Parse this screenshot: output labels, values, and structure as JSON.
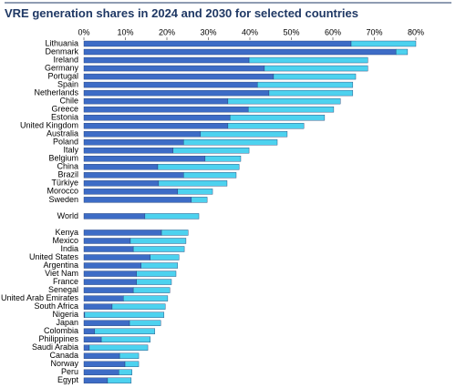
{
  "chart_data": {
    "type": "stacked-barh",
    "title": "VRE generation shares in 2024 and 2030 for selected countries",
    "categories": [
      "Lithuania",
      "Denmark",
      "Ireland",
      "Germany",
      "Portugal",
      "Spain",
      "Netherlands",
      "Chile",
      "Greece",
      "Estonia",
      "United Kingdom",
      "Australia",
      "Poland",
      "Italy",
      "Belgium",
      "China",
      "Brazil",
      "Türkiye",
      "Morocco",
      "Sweden",
      null,
      "World",
      null,
      "Kenya",
      "Mexico",
      "India",
      "United States",
      "Argentina",
      "Viet Nam",
      "France",
      "Senegal",
      "United Arab Emirates",
      "South Africa",
      "Nigeria",
      "Japan",
      "Colombia",
      "Philippines",
      "Saudi Arabia",
      "Canada",
      "Norway",
      "Peru",
      "Egypt"
    ],
    "series": [
      {
        "color": "#3d6cc6",
        "values": [
          64.4,
          75.2,
          39.8,
          43.5,
          45.7,
          41.8,
          44.6,
          34.7,
          39.6,
          35.2,
          34.7,
          28.1,
          24.0,
          21.5,
          29.2,
          17.8,
          24.0,
          18.0,
          22.6,
          25.9,
          null,
          14.7,
          null,
          18.7,
          11.2,
          11.9,
          16.0,
          13.8,
          12.7,
          12.7,
          11.9,
          9.5,
          6.8,
          0.2,
          11.0,
          2.6,
          4.2,
          1.3,
          8.6,
          9.9,
          8.4,
          5.7
        ]
      },
      {
        "color": "#4dd2ef",
        "values": [
          15.6,
          2.8,
          28.6,
          24.9,
          19.8,
          23.0,
          20.2,
          27.1,
          20.6,
          22.8,
          18.3,
          20.9,
          22.6,
          18.3,
          8.6,
          19.6,
          12.7,
          16.5,
          8.4,
          3.8,
          null,
          13.0,
          null,
          6.4,
          13.4,
          12.3,
          6.9,
          8.8,
          9.5,
          8.4,
          8.8,
          10.7,
          12.8,
          19.1,
          7.5,
          14.5,
          11.8,
          14.1,
          4.6,
          3.3,
          3.2,
          5.7
        ]
      }
    ],
    "xlim": [
      0,
      80
    ],
    "xticks": [
      {
        "value": 0,
        "label": "0%"
      },
      {
        "value": 10,
        "label": "10%"
      },
      {
        "value": 20,
        "label": "20%"
      },
      {
        "value": 30,
        "label": "30%"
      },
      {
        "value": 40,
        "label": "40%"
      },
      {
        "value": 50,
        "label": "50%"
      },
      {
        "value": 60,
        "label": "60%"
      },
      {
        "value": 70,
        "label": "70%"
      },
      {
        "value": 80,
        "label": "80%"
      }
    ],
    "grid": false
  }
}
